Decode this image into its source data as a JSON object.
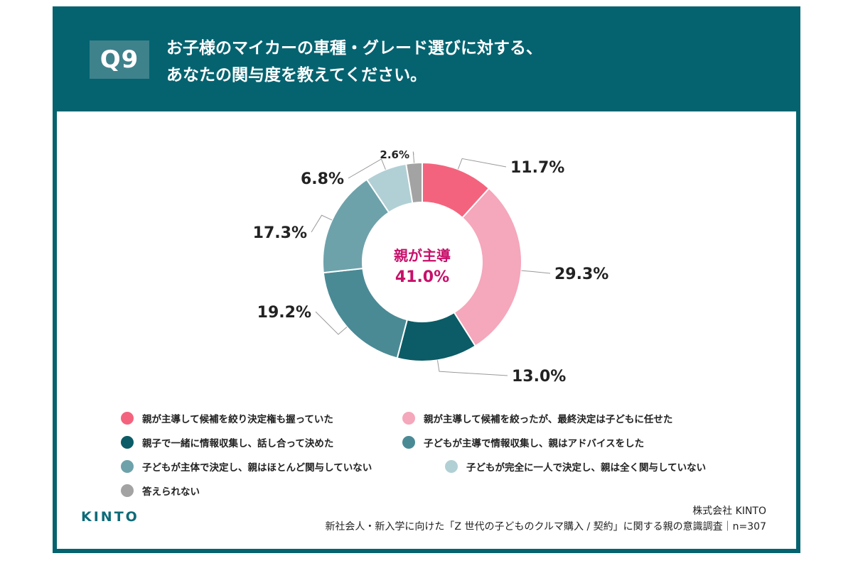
{
  "header": {
    "badge": "Q9",
    "title_line1": "お子様のマイカーの車種・グレード選びに対する、",
    "title_line2": "あなたの関与度を教えてください。"
  },
  "chart_data": {
    "type": "donut",
    "center_label": "親が主導",
    "center_value": "41.0%",
    "series": [
      {
        "name": "親が主導して候補を絞り決定権も握っていた",
        "value": 11.7,
        "label": "11.7%",
        "color": "#f4637d"
      },
      {
        "name": "親が主導して候補を絞ったが、最終決定は子どもに任せた",
        "value": 29.3,
        "label": "29.3%",
        "color": "#f5a7bb"
      },
      {
        "name": "親子で一緒に情報収集し、話し合って決めた",
        "value": 13.0,
        "label": "13.0%",
        "color": "#0b5c66"
      },
      {
        "name": "子どもが主導で情報収集し、親はアドバイスをした",
        "value": 19.2,
        "label": "19.2%",
        "color": "#4a8a95"
      },
      {
        "name": "子どもが主体で決定し、親はほとんど関与していない",
        "value": 17.3,
        "label": "17.3%",
        "color": "#6ea2ab"
      },
      {
        "name": "子どもが完全に一人で決定し、親は全く関与していない",
        "value": 6.8,
        "label": "6.8%",
        "color": "#b1d0d5"
      },
      {
        "name": "答えられない",
        "value": 2.6,
        "label": "2.6%",
        "color": "#a3a3a3"
      }
    ]
  },
  "footer": {
    "logo": "KINTO",
    "company": "株式会社 KINTO",
    "survey": "新社会人・新入学に向けた「Z 世代の子どものクルマ購入 / 契約」に関する親の意識調査｜n=307"
  }
}
